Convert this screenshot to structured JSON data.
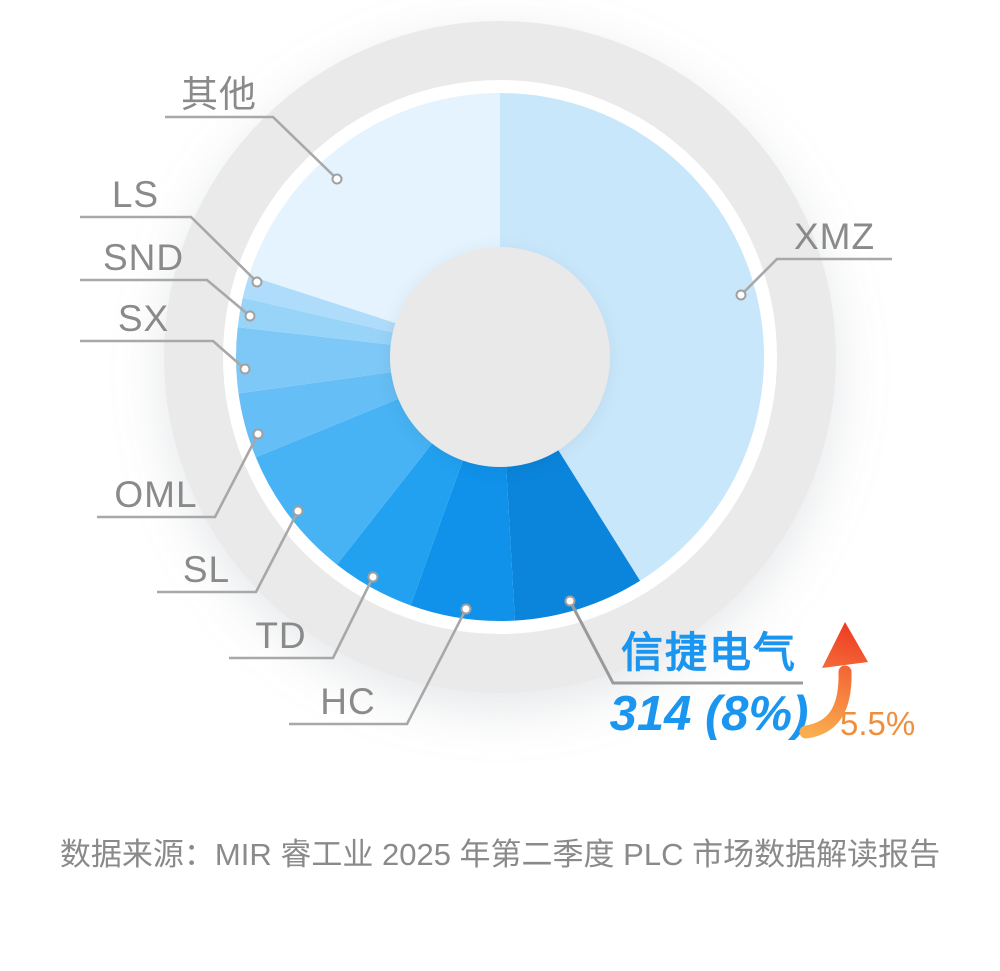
{
  "chart_data": {
    "type": "pie",
    "shape": "donut-with-outer-ring",
    "direction": "clockwise",
    "start_angle_deg": 0,
    "legend_position": "callout-labels",
    "segments": [
      {
        "label": "XMZ",
        "pct": 41.1,
        "color": "#C9E7FB"
      },
      {
        "label": "信捷电气",
        "pct": 8.0,
        "value": 314,
        "color": "#0B85DB",
        "highlighted": true
      },
      {
        "label": "HC",
        "pct": 6.4,
        "color": "#1092EA"
      },
      {
        "label": "TD",
        "pct": 5.1,
        "color": "#22A1F1"
      },
      {
        "label": "SL",
        "pct": 8.2,
        "color": "#47B3F4"
      },
      {
        "label": "OML",
        "pct": 4.0,
        "color": "#65BEF5"
      },
      {
        "label": "SX",
        "pct": 4.0,
        "color": "#7EC8F7"
      },
      {
        "label": "SND",
        "pct": 1.8,
        "color": "#98D3F8"
      },
      {
        "label": "LS",
        "pct": 1.4,
        "color": "#AFDCFA"
      },
      {
        "label": "其他",
        "pct": 20.0,
        "color": "#E4F3FD"
      }
    ]
  },
  "highlight": {
    "name": "信捷电气",
    "value_text": "314 (8%)",
    "growth_text": "5.5%",
    "name_color": "#1B96F0",
    "value_color": "#1B96F0",
    "growth_color": "#EF8E3C",
    "arrow_icon": "up-trend-arrow",
    "arrow_colors": [
      "#FAAE4E",
      "#F4763B",
      "#EE3B24"
    ]
  },
  "rings": {
    "outer_ring_color": "#EAEAEA",
    "gap_ring_color": "#FFFFFF",
    "hole_color": "#E9E9E9",
    "leader_line_color": "#A8A8A8"
  },
  "source": {
    "text": "数据来源：MIR 睿工业 2025 年第二季度 PLC 市场数据解读报告"
  }
}
